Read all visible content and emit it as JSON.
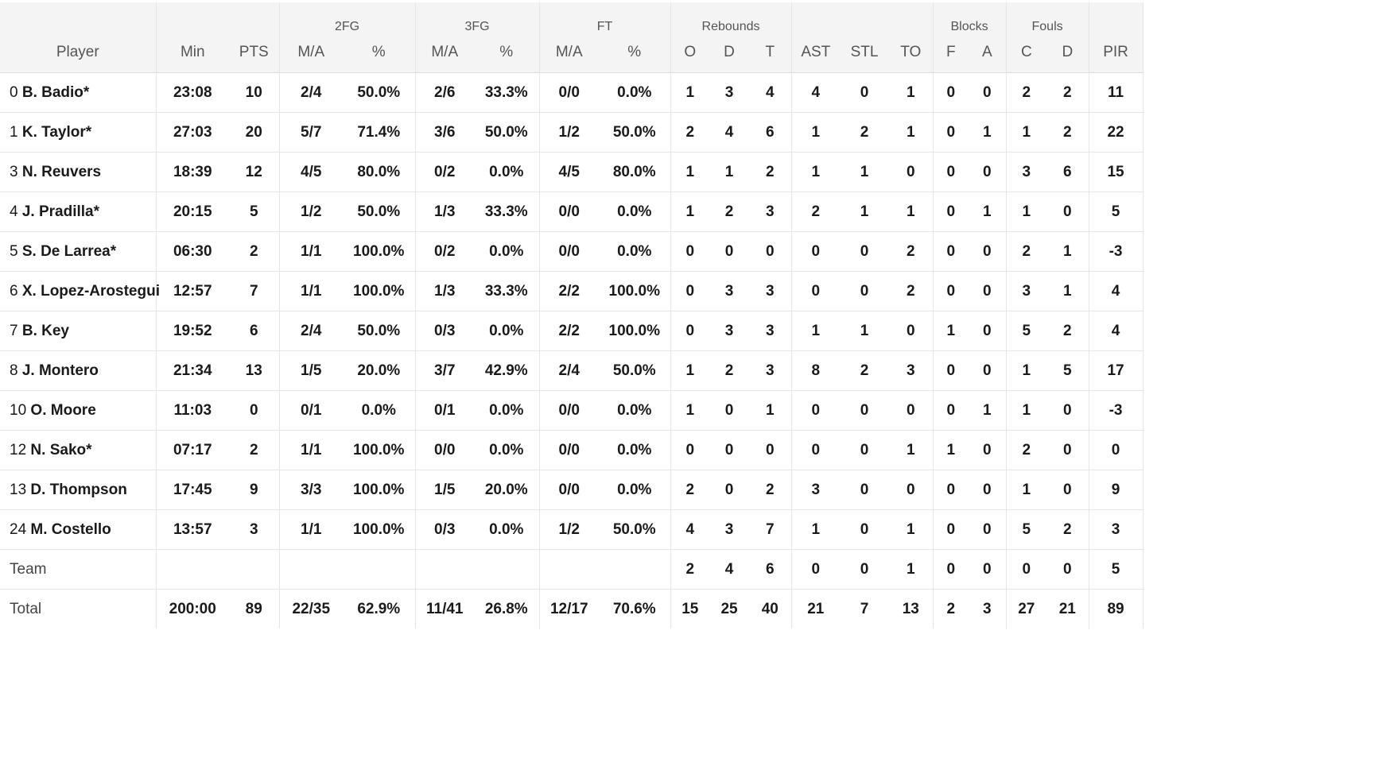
{
  "header": {
    "groups": {
      "fg2": "2FG",
      "fg3": "3FG",
      "ft": "FT",
      "reb": "Rebounds",
      "blk": "Blocks",
      "fouls": "Fouls"
    },
    "cols": {
      "player": "Player",
      "min": "Min",
      "pts": "PTS",
      "fg2_ma": "M/A",
      "fg2_pct": "%",
      "fg3_ma": "M/A",
      "fg3_pct": "%",
      "ft_ma": "M/A",
      "ft_pct": "%",
      "reb_o": "O",
      "reb_d": "D",
      "reb_t": "T",
      "ast": "AST",
      "stl": "STL",
      "to": "TO",
      "blk_f": "F",
      "blk_a": "A",
      "foul_c": "C",
      "foul_d": "D",
      "pir": "PIR"
    }
  },
  "rows": [
    {
      "num": "0",
      "name": "B. Badio*",
      "min": "23:08",
      "pts": "10",
      "fg2_ma": "2/4",
      "fg2_pct": "50.0%",
      "fg3_ma": "2/6",
      "fg3_pct": "33.3%",
      "ft_ma": "0/0",
      "ft_pct": "0.0%",
      "reb_o": "1",
      "reb_d": "3",
      "reb_t": "4",
      "ast": "4",
      "stl": "0",
      "to": "1",
      "blk_f": "0",
      "blk_a": "0",
      "foul_c": "2",
      "foul_d": "2",
      "pir": "11"
    },
    {
      "num": "1",
      "name": "K. Taylor*",
      "min": "27:03",
      "pts": "20",
      "fg2_ma": "5/7",
      "fg2_pct": "71.4%",
      "fg3_ma": "3/6",
      "fg3_pct": "50.0%",
      "ft_ma": "1/2",
      "ft_pct": "50.0%",
      "reb_o": "2",
      "reb_d": "4",
      "reb_t": "6",
      "ast": "1",
      "stl": "2",
      "to": "1",
      "blk_f": "0",
      "blk_a": "1",
      "foul_c": "1",
      "foul_d": "2",
      "pir": "22"
    },
    {
      "num": "3",
      "name": "N. Reuvers",
      "min": "18:39",
      "pts": "12",
      "fg2_ma": "4/5",
      "fg2_pct": "80.0%",
      "fg3_ma": "0/2",
      "fg3_pct": "0.0%",
      "ft_ma": "4/5",
      "ft_pct": "80.0%",
      "reb_o": "1",
      "reb_d": "1",
      "reb_t": "2",
      "ast": "1",
      "stl": "1",
      "to": "0",
      "blk_f": "0",
      "blk_a": "0",
      "foul_c": "3",
      "foul_d": "6",
      "pir": "15"
    },
    {
      "num": "4",
      "name": "J. Pradilla*",
      "min": "20:15",
      "pts": "5",
      "fg2_ma": "1/2",
      "fg2_pct": "50.0%",
      "fg3_ma": "1/3",
      "fg3_pct": "33.3%",
      "ft_ma": "0/0",
      "ft_pct": "0.0%",
      "reb_o": "1",
      "reb_d": "2",
      "reb_t": "3",
      "ast": "2",
      "stl": "1",
      "to": "1",
      "blk_f": "0",
      "blk_a": "1",
      "foul_c": "1",
      "foul_d": "0",
      "pir": "5"
    },
    {
      "num": "5",
      "name": "S. De Larrea*",
      "min": "06:30",
      "pts": "2",
      "fg2_ma": "1/1",
      "fg2_pct": "100.0%",
      "fg3_ma": "0/2",
      "fg3_pct": "0.0%",
      "ft_ma": "0/0",
      "ft_pct": "0.0%",
      "reb_o": "0",
      "reb_d": "0",
      "reb_t": "0",
      "ast": "0",
      "stl": "0",
      "to": "2",
      "blk_f": "0",
      "blk_a": "0",
      "foul_c": "2",
      "foul_d": "1",
      "pir": "-3"
    },
    {
      "num": "6",
      "name": "X. Lopez-Arostegui",
      "min": "12:57",
      "pts": "7",
      "fg2_ma": "1/1",
      "fg2_pct": "100.0%",
      "fg3_ma": "1/3",
      "fg3_pct": "33.3%",
      "ft_ma": "2/2",
      "ft_pct": "100.0%",
      "reb_o": "0",
      "reb_d": "3",
      "reb_t": "3",
      "ast": "0",
      "stl": "0",
      "to": "2",
      "blk_f": "0",
      "blk_a": "0",
      "foul_c": "3",
      "foul_d": "1",
      "pir": "4"
    },
    {
      "num": "7",
      "name": "B. Key",
      "min": "19:52",
      "pts": "6",
      "fg2_ma": "2/4",
      "fg2_pct": "50.0%",
      "fg3_ma": "0/3",
      "fg3_pct": "0.0%",
      "ft_ma": "2/2",
      "ft_pct": "100.0%",
      "reb_o": "0",
      "reb_d": "3",
      "reb_t": "3",
      "ast": "1",
      "stl": "1",
      "to": "0",
      "blk_f": "1",
      "blk_a": "0",
      "foul_c": "5",
      "foul_d": "2",
      "pir": "4"
    },
    {
      "num": "8",
      "name": "J. Montero",
      "min": "21:34",
      "pts": "13",
      "fg2_ma": "1/5",
      "fg2_pct": "20.0%",
      "fg3_ma": "3/7",
      "fg3_pct": "42.9%",
      "ft_ma": "2/4",
      "ft_pct": "50.0%",
      "reb_o": "1",
      "reb_d": "2",
      "reb_t": "3",
      "ast": "8",
      "stl": "2",
      "to": "3",
      "blk_f": "0",
      "blk_a": "0",
      "foul_c": "1",
      "foul_d": "5",
      "pir": "17"
    },
    {
      "num": "10",
      "name": "O. Moore",
      "min": "11:03",
      "pts": "0",
      "fg2_ma": "0/1",
      "fg2_pct": "0.0%",
      "fg3_ma": "0/1",
      "fg3_pct": "0.0%",
      "ft_ma": "0/0",
      "ft_pct": "0.0%",
      "reb_o": "1",
      "reb_d": "0",
      "reb_t": "1",
      "ast": "0",
      "stl": "0",
      "to": "0",
      "blk_f": "0",
      "blk_a": "1",
      "foul_c": "1",
      "foul_d": "0",
      "pir": "-3"
    },
    {
      "num": "12",
      "name": "N. Sako*",
      "min": "07:17",
      "pts": "2",
      "fg2_ma": "1/1",
      "fg2_pct": "100.0%",
      "fg3_ma": "0/0",
      "fg3_pct": "0.0%",
      "ft_ma": "0/0",
      "ft_pct": "0.0%",
      "reb_o": "0",
      "reb_d": "0",
      "reb_t": "0",
      "ast": "0",
      "stl": "0",
      "to": "1",
      "blk_f": "1",
      "blk_a": "0",
      "foul_c": "2",
      "foul_d": "0",
      "pir": "0"
    },
    {
      "num": "13",
      "name": "D. Thompson",
      "min": "17:45",
      "pts": "9",
      "fg2_ma": "3/3",
      "fg2_pct": "100.0%",
      "fg3_ma": "1/5",
      "fg3_pct": "20.0%",
      "ft_ma": "0/0",
      "ft_pct": "0.0%",
      "reb_o": "2",
      "reb_d": "0",
      "reb_t": "2",
      "ast": "3",
      "stl": "0",
      "to": "0",
      "blk_f": "0",
      "blk_a": "0",
      "foul_c": "1",
      "foul_d": "0",
      "pir": "9"
    },
    {
      "num": "24",
      "name": "M. Costello",
      "min": "13:57",
      "pts": "3",
      "fg2_ma": "1/1",
      "fg2_pct": "100.0%",
      "fg3_ma": "0/3",
      "fg3_pct": "0.0%",
      "ft_ma": "1/2",
      "ft_pct": "50.0%",
      "reb_o": "4",
      "reb_d": "3",
      "reb_t": "7",
      "ast": "1",
      "stl": "0",
      "to": "1",
      "blk_f": "0",
      "blk_a": "0",
      "foul_c": "5",
      "foul_d": "2",
      "pir": "3"
    },
    {
      "kind": "team",
      "num": "",
      "name": "Team",
      "min": "",
      "pts": "",
      "fg2_ma": "",
      "fg2_pct": "",
      "fg3_ma": "",
      "fg3_pct": "",
      "ft_ma": "",
      "ft_pct": "",
      "reb_o": "2",
      "reb_d": "4",
      "reb_t": "6",
      "ast": "0",
      "stl": "0",
      "to": "1",
      "blk_f": "0",
      "blk_a": "0",
      "foul_c": "0",
      "foul_d": "0",
      "pir": "5"
    },
    {
      "kind": "total",
      "num": "",
      "name": "Total",
      "min": "200:00",
      "pts": "89",
      "fg2_ma": "22/35",
      "fg2_pct": "62.9%",
      "fg3_ma": "11/41",
      "fg3_pct": "26.8%",
      "ft_ma": "12/17",
      "ft_pct": "70.6%",
      "reb_o": "15",
      "reb_d": "25",
      "reb_t": "40",
      "ast": "21",
      "stl": "7",
      "to": "13",
      "blk_f": "2",
      "blk_a": "3",
      "foul_c": "27",
      "foul_d": "21",
      "pir": "89"
    }
  ]
}
